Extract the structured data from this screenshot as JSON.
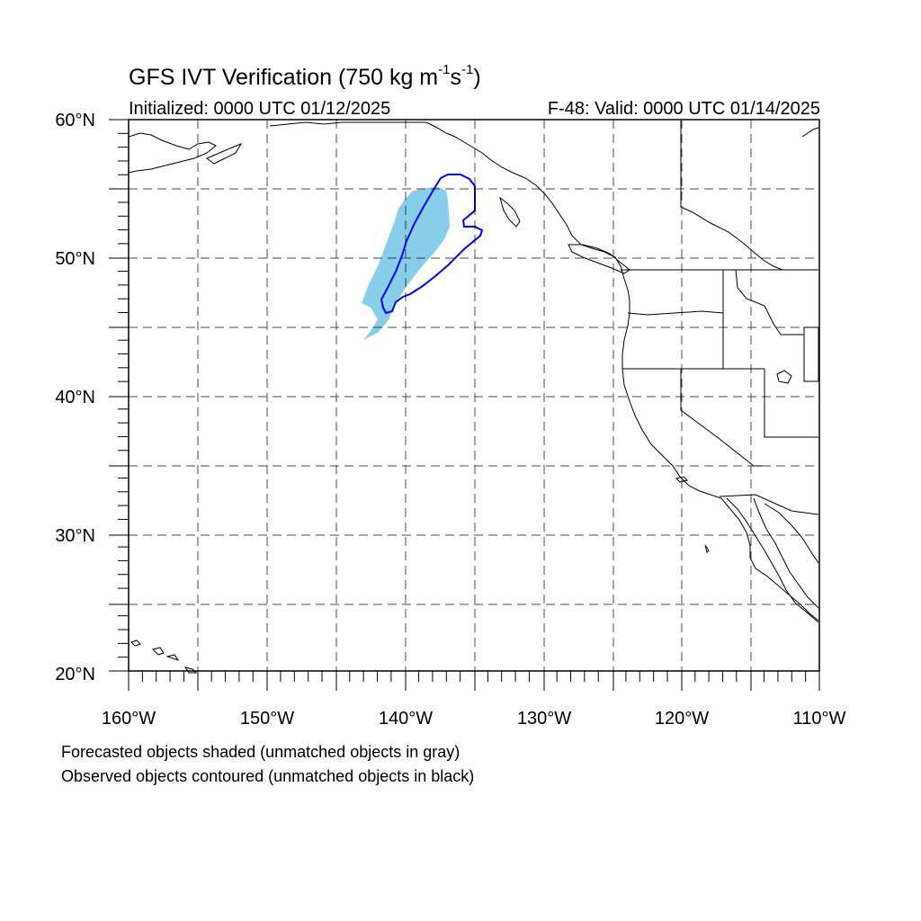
{
  "header": {
    "title_main": "GFS IVT Verification (750 kg m",
    "title_sup1": "-1",
    "title_mid": "s",
    "title_sup2": "-1",
    "title_end": ")",
    "initialized": "Initialized: 0000 UTC 01/12/2025",
    "valid": "F-48: Valid: 0000 UTC 01/14/2025"
  },
  "map": {
    "projection": "cylindrical-equidistant",
    "lon_range": [
      -160,
      -110
    ],
    "lat_range": [
      20,
      60
    ],
    "lat_labels": [
      "20°N",
      "30°N",
      "40°N",
      "50°N",
      "60°N"
    ],
    "lon_labels": [
      "160°W",
      "150°W",
      "140°W",
      "130°W",
      "120°W",
      "110°W"
    ],
    "forecast_shade_color": "#87ceeb",
    "observed_contour_color": "#0000ff",
    "coastline_color": "#000000",
    "grid_style": "dashed"
  },
  "footer": {
    "line1": "Forecasted objects shaded (unmatched objects in gray)",
    "line2": "Observed objects contoured (unmatched objects in black)"
  }
}
